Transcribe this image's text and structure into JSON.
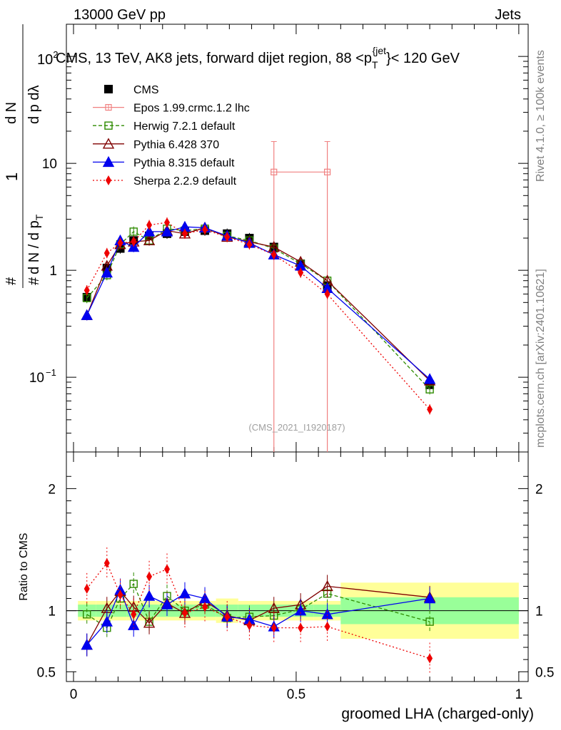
{
  "header": {
    "energy": "13000 GeV pp",
    "process": "Jets",
    "title": "CMS, 13 TeV, AK8 jets, forward dijet region, 88 <p",
    "title_sub": "T",
    "title_sup": "{jet",
    "title_end": "}< 120 GeV",
    "ylabel_prefix": "10",
    "ylabel_sup": "2"
  },
  "side": {
    "rivet": "Rivet 4.1.0, ≥ 100k events",
    "source": "mcplots.cern.ch [arXiv:2401.10621]"
  },
  "analysis_id": "(CMS_2021_I1920187)",
  "axes": {
    "xlabel": "groomed LHA (charged-only)",
    "ratio_ylabel": "Ratio to CMS",
    "main_ylabel_num": "1",
    "main_ylabel_den": "d N / d p",
    "main_ylabel_rest": "d N",
    "main_ylabel_tail": "d p  dλ",
    "main_ylabel_sub": "T"
  },
  "colors": {
    "cms": "#000000",
    "epos": "#f08080",
    "herwig": "#2e8b00",
    "pythia6": "#800000",
    "pythia8": "#0000ee",
    "sherpa": "#ee0000",
    "band_inner": "#99ff99",
    "band_outer": "#ffff99"
  },
  "chart_data": {
    "type": "scatter",
    "xlabel": "groomed LHA (charged-only)",
    "ylabel": "1/N dN/dp_T dλ",
    "xlim": [
      0,
      1
    ],
    "main_ylim": [
      0.02,
      200
    ],
    "ratio_ylim": [
      0.42,
      2.3
    ],
    "main_yticks": [
      {
        "value": 0.1,
        "label": "10"
      },
      {
        "value": 1,
        "label": "1"
      },
      {
        "value": 10,
        "label": "10"
      }
    ],
    "main_ytick_sup": {
      "0.1": "−1"
    },
    "ratio_yticks": [
      {
        "value": 0.5,
        "label": "0.5"
      },
      {
        "value": 1,
        "label": "1"
      },
      {
        "value": 2,
        "label": "2"
      }
    ],
    "xticks": [
      {
        "value": 0,
        "label": "0"
      },
      {
        "value": 0.5,
        "label": "0.5"
      },
      {
        "value": 1,
        "label": "1"
      }
    ],
    "x": [
      0.03,
      0.075,
      0.105,
      0.135,
      0.17,
      0.21,
      0.25,
      0.295,
      0.345,
      0.395,
      0.45,
      0.51,
      0.57,
      0.8
    ],
    "bin_edges": [
      0.01,
      0.05,
      0.09,
      0.12,
      0.15,
      0.19,
      0.23,
      0.27,
      0.32,
      0.37,
      0.42,
      0.48,
      0.54,
      0.6,
      1.0
    ],
    "band_inner": [
      0.05,
      0.05,
      0.05,
      0.05,
      0.05,
      0.05,
      0.05,
      0.05,
      0.05,
      0.05,
      0.05,
      0.05,
      0.05,
      0.11
    ],
    "band_outer": [
      0.08,
      0.08,
      0.08,
      0.08,
      0.08,
      0.08,
      0.08,
      0.08,
      0.1,
      0.08,
      0.08,
      0.08,
      0.08,
      0.23
    ],
    "series": [
      {
        "name": "CMS",
        "key": "cms",
        "marker": "square-filled",
        "line": "none",
        "values": [
          0.56,
          1.05,
          1.6,
          1.9,
          2.1,
          2.2,
          2.3,
          2.35,
          2.2,
          2.0,
          1.65,
          1.15,
          0.72,
          0.085
        ],
        "ratio": [
          1,
          1,
          1,
          1,
          1,
          1,
          1,
          1,
          1,
          1,
          1,
          1,
          1,
          1
        ]
      },
      {
        "name": "Epos 1.99.crmc.1.2 lhc",
        "key": "epos",
        "marker": "cross-open",
        "line": "solid",
        "points": [
          {
            "x": 0.45,
            "y": 8.3,
            "lo": 0.001,
            "hi": 16.0
          },
          {
            "x": 0.57,
            "y": 8.3,
            "lo": 0.001,
            "hi": 16.0
          }
        ],
        "step": {
          "x0": 0.45,
          "x1": 0.57,
          "y": 8.3
        }
      },
      {
        "name": "Herwig 7.2.1 default",
        "key": "herwig",
        "marker": "square-open",
        "line": "dashed",
        "values": [
          0.55,
          0.9,
          1.75,
          2.3,
          1.9,
          2.45,
          2.35,
          2.45,
          2.1,
          1.9,
          1.6,
          1.15,
          0.8,
          0.077
        ],
        "ratio": [
          0.97,
          0.86,
          1.1,
          1.22,
          0.91,
          1.12,
          1.0,
          1.05,
          0.94,
          0.95,
          0.96,
          1.01,
          1.14,
          0.91
        ]
      },
      {
        "name": "Pythia 6.428 370",
        "key": "pythia6",
        "marker": "triangle-open",
        "line": "solid",
        "values": [
          0.38,
          1.1,
          1.75,
          1.85,
          1.9,
          2.35,
          2.2,
          2.5,
          2.05,
          1.85,
          1.65,
          1.2,
          0.8,
          0.093
        ],
        "ratio": [
          0.72,
          1.02,
          1.16,
          1.03,
          0.9,
          1.06,
          0.98,
          1.08,
          0.96,
          0.92,
          1.02,
          1.05,
          1.2,
          1.11
        ]
      },
      {
        "name": "Pythia 8.315 default",
        "key": "pythia8",
        "marker": "triangle-filled",
        "line": "solid",
        "values": [
          0.38,
          0.95,
          1.9,
          1.65,
          2.3,
          2.3,
          2.55,
          2.5,
          2.1,
          1.8,
          1.4,
          1.1,
          0.68,
          0.096
        ],
        "ratio": [
          0.72,
          0.91,
          1.17,
          0.88,
          1.12,
          1.05,
          1.14,
          1.1,
          0.95,
          0.93,
          0.87,
          1.0,
          0.97,
          1.1
        ]
      },
      {
        "name": "Sherpa 2.2.9 default",
        "key": "sherpa",
        "marker": "diamond-filled",
        "line": "dotted",
        "values": [
          0.65,
          1.45,
          1.8,
          1.85,
          2.65,
          2.8,
          2.2,
          2.4,
          2.05,
          1.75,
          1.4,
          0.95,
          0.6,
          0.05
        ],
        "ratio": [
          1.18,
          1.39,
          1.13,
          0.97,
          1.28,
          1.34,
          0.98,
          1.03,
          0.95,
          0.88,
          0.86,
          0.86,
          0.87,
          0.61
        ]
      }
    ]
  }
}
